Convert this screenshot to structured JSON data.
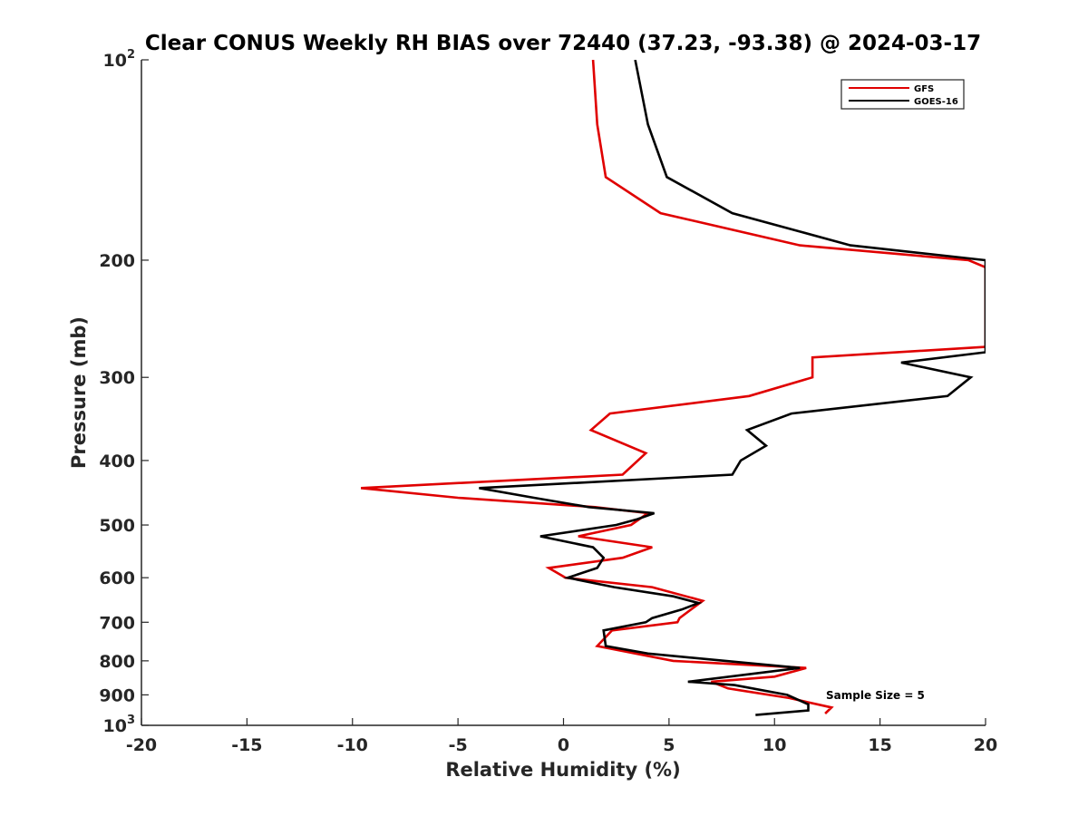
{
  "chart_data": {
    "type": "line",
    "title": "Clear CONUS Weekly RH BIAS over 72440 (37.23, -93.38) @ 2024-03-17",
    "xlabel": "Relative Humidity (%)",
    "ylabel": "Pressure (mb)",
    "xlim": [
      -20,
      20
    ],
    "ylim": [
      100,
      1000
    ],
    "y_scale": "log",
    "y_reversed": true,
    "x_ticks": [
      -20,
      -15,
      -10,
      -5,
      0,
      5,
      10,
      15,
      20
    ],
    "x_tick_labels": [
      "-20",
      "-15",
      "-10",
      "-5",
      "0",
      "5",
      "10",
      "15",
      "20"
    ],
    "y_ticks": [
      100,
      200,
      300,
      400,
      500,
      600,
      700,
      800,
      900,
      1000
    ],
    "y_tick_labels": [
      {
        "base": "10",
        "sup": "2"
      },
      {
        "text": "200"
      },
      {
        "text": "300"
      },
      {
        "text": "400"
      },
      {
        "text": "500"
      },
      {
        "text": "600"
      },
      {
        "text": "700"
      },
      {
        "text": "800"
      },
      {
        "text": "900"
      },
      {
        "base": "10",
        "sup": "3"
      }
    ],
    "grid": false,
    "legend_position": "top-right",
    "annotation": "Sample Size = 5",
    "series": [
      {
        "name": "GFS",
        "color": "#e00000",
        "points": [
          [
            1.4,
            100
          ],
          [
            1.6,
            125
          ],
          [
            2.0,
            150
          ],
          [
            4.6,
            170
          ],
          [
            11.2,
            190
          ],
          [
            19.2,
            200
          ],
          [
            20.0,
            205
          ],
          [
            20.0,
            270
          ],
          [
            11.8,
            280
          ],
          [
            11.8,
            300
          ],
          [
            8.8,
            320
          ],
          [
            2.2,
            340
          ],
          [
            1.3,
            360
          ],
          [
            3.9,
            390
          ],
          [
            2.8,
            420
          ],
          [
            -9.6,
            440
          ],
          [
            -5.0,
            455
          ],
          [
            1.5,
            470
          ],
          [
            4.0,
            480
          ],
          [
            3.2,
            500
          ],
          [
            0.7,
            520
          ],
          [
            4.2,
            540
          ],
          [
            2.8,
            560
          ],
          [
            -0.7,
            580
          ],
          [
            0.1,
            600
          ],
          [
            4.2,
            620
          ],
          [
            6.6,
            650
          ],
          [
            5.5,
            690
          ],
          [
            5.4,
            700
          ],
          [
            2.3,
            720
          ],
          [
            1.6,
            760
          ],
          [
            5.2,
            800
          ],
          [
            11.5,
            820
          ],
          [
            10.0,
            845
          ],
          [
            7.0,
            860
          ],
          [
            7.8,
            880
          ],
          [
            10.7,
            910
          ],
          [
            12.7,
            940
          ],
          [
            12.4,
            960
          ]
        ]
      },
      {
        "name": "GOES-16",
        "color": "#000000",
        "points": [
          [
            3.4,
            100
          ],
          [
            4.0,
            125
          ],
          [
            4.9,
            150
          ],
          [
            8.0,
            170
          ],
          [
            13.6,
            190
          ],
          [
            20.0,
            200
          ],
          [
            20.0,
            275
          ],
          [
            16.0,
            285
          ],
          [
            19.3,
            300
          ],
          [
            18.2,
            320
          ],
          [
            10.8,
            340
          ],
          [
            8.7,
            360
          ],
          [
            9.6,
            380
          ],
          [
            8.4,
            400
          ],
          [
            8.0,
            420
          ],
          [
            -4.0,
            440
          ],
          [
            -1.4,
            455
          ],
          [
            1.2,
            470
          ],
          [
            4.3,
            480
          ],
          [
            3.5,
            490
          ],
          [
            2.5,
            500
          ],
          [
            -1.1,
            520
          ],
          [
            1.4,
            540
          ],
          [
            1.9,
            560
          ],
          [
            1.6,
            580
          ],
          [
            0.2,
            600
          ],
          [
            2.4,
            620
          ],
          [
            5.2,
            640
          ],
          [
            6.4,
            655
          ],
          [
            5.6,
            670
          ],
          [
            4.2,
            690
          ],
          [
            3.9,
            700
          ],
          [
            1.9,
            720
          ],
          [
            2.0,
            760
          ],
          [
            4.0,
            780
          ],
          [
            11.2,
            820
          ],
          [
            5.9,
            860
          ],
          [
            8.1,
            870
          ],
          [
            10.6,
            900
          ],
          [
            11.6,
            930
          ],
          [
            11.6,
            950
          ],
          [
            9.1,
            965
          ]
        ]
      }
    ]
  }
}
